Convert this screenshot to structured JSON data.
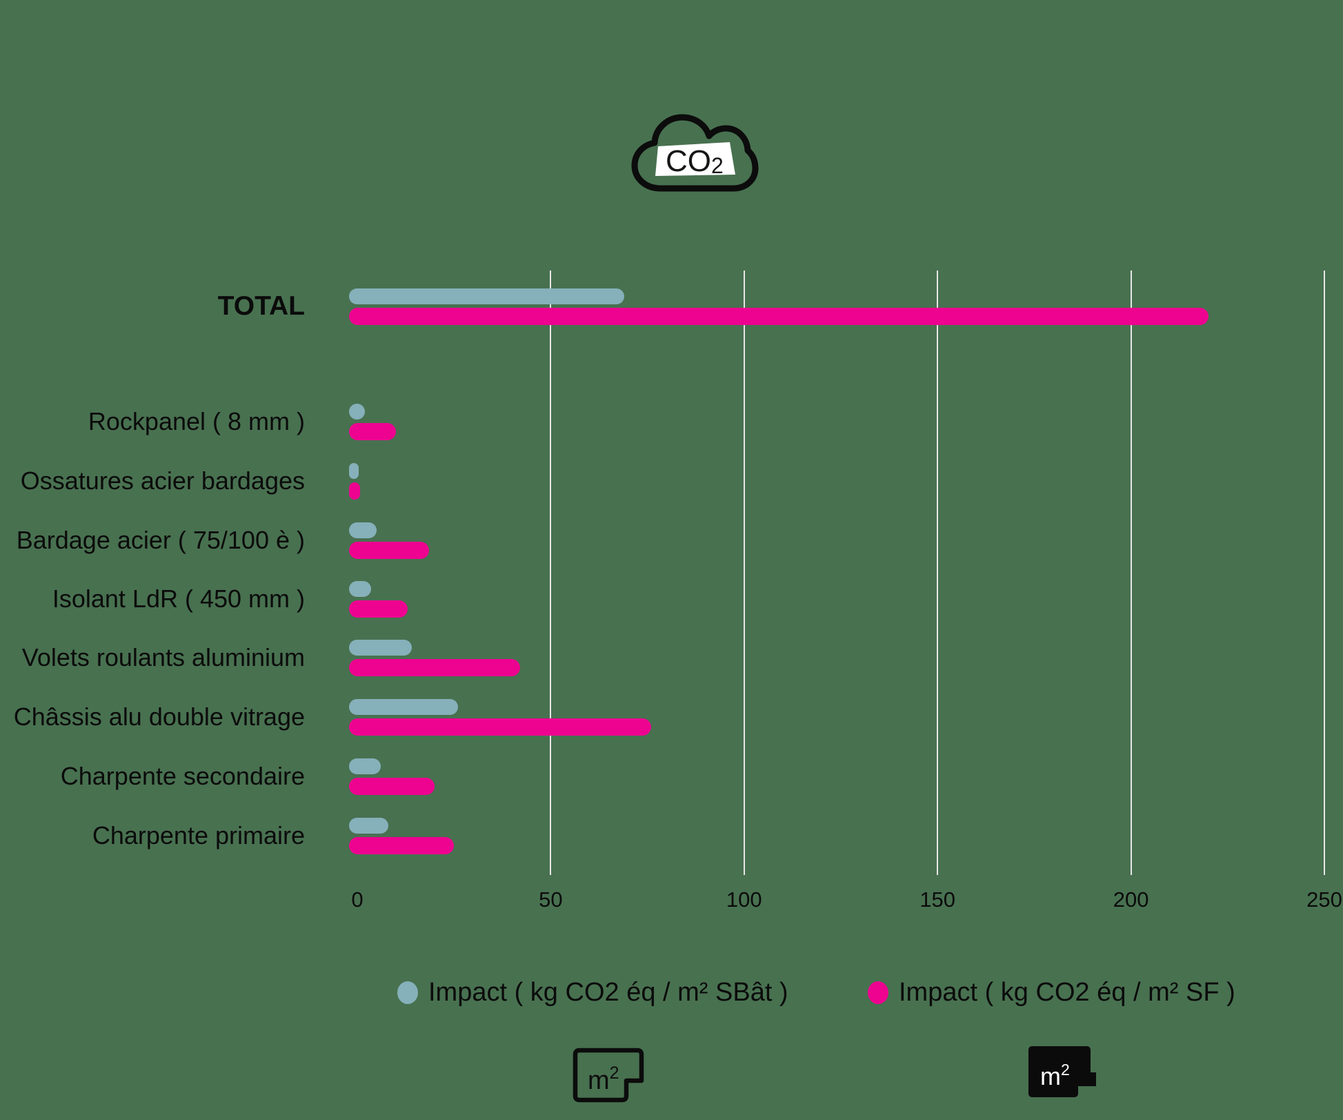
{
  "chart_data": {
    "type": "bar",
    "orientation": "horizontal",
    "title": "",
    "xlabel": "",
    "ylabel": "",
    "categories": [
      "TOTAL",
      "Rockpanel ( 8 mm )",
      "Ossatures acier bardages",
      "Bardage acier ( 75/100 è )",
      "Isolant LdR ( 450 mm )",
      "Volets roulants aluminium",
      "Châssis alu double vitrage",
      "Charpente secondaire",
      "Charpente primaire"
    ],
    "series": [
      {
        "name": "Impact ( kg CO2 éq / m² SBât )",
        "color": "#86B0BA",
        "values": [
          69,
          2,
          0.3,
          5,
          3.5,
          14,
          26,
          6,
          8
        ]
      },
      {
        "name": "Impact ( kg CO2 éq / m² SF )",
        "color": "#EE0290",
        "values": [
          220,
          10,
          0.8,
          18.5,
          13,
          42,
          76,
          20,
          25
        ]
      }
    ],
    "x_ticks": [
      0,
      50,
      100,
      150,
      200,
      250
    ],
    "xlim": [
      0,
      250
    ],
    "grid": "vertical white gridlines",
    "legend_position": "bottom"
  },
  "colors": {
    "background": "#487150",
    "gridline": "#e7e7e7",
    "text": "#0b0b0b",
    "series_sbat": "#86B0BA",
    "series_sf": "#EE0290"
  },
  "icons": {
    "cloud": {
      "main": "CO",
      "sub": "2"
    },
    "m2_outline": {
      "main": "m",
      "sup": "2"
    },
    "m2_solid": {
      "main": "m",
      "sup": "2"
    }
  }
}
